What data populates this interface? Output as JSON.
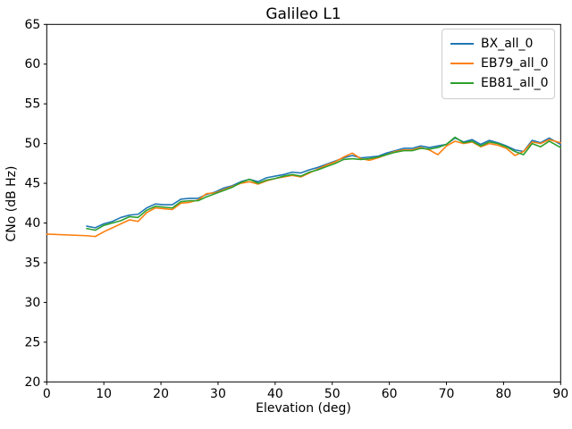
{
  "chart_data": {
    "type": "line",
    "title": "Galileo L1",
    "xlabel": "Elevation (deg)",
    "ylabel": "CNo (dB Hz)",
    "xlim": [
      0,
      90
    ],
    "ylim": [
      20,
      65
    ],
    "xticks": [
      0,
      10,
      20,
      30,
      40,
      50,
      60,
      70,
      80,
      90
    ],
    "yticks": [
      20,
      25,
      30,
      35,
      40,
      45,
      50,
      55,
      60,
      65
    ],
    "grid": false,
    "legend_position": "upper right",
    "series": [
      {
        "name": "BX_all_0",
        "color": "#1f77b4",
        "x": [
          7,
          8.5,
          10,
          11.5,
          13,
          14.5,
          16,
          17.5,
          19,
          20.5,
          22,
          23.5,
          25,
          26.5,
          28,
          29.5,
          31,
          32.5,
          34,
          35.5,
          37,
          38.5,
          40,
          41.5,
          43,
          44.5,
          46,
          47.5,
          49,
          50.5,
          52,
          53.5,
          55,
          56.5,
          58,
          59.5,
          61,
          62.5,
          64,
          65.5,
          67,
          68.5,
          70,
          71.5,
          73,
          74.5,
          76,
          77.5,
          79,
          80.5,
          82,
          83.5,
          85,
          86.5,
          88,
          90
        ],
        "y": [
          39.6,
          39.4,
          39.9,
          40.2,
          40.7,
          41.0,
          41.1,
          41.9,
          42.4,
          42.3,
          42.3,
          43.0,
          43.1,
          43.1,
          43.6,
          43.9,
          44.4,
          44.7,
          45.2,
          45.5,
          45.2,
          45.7,
          45.9,
          46.1,
          46.4,
          46.3,
          46.7,
          47.0,
          47.4,
          47.8,
          48.2,
          48.5,
          48.2,
          48.3,
          48.4,
          48.8,
          49.1,
          49.4,
          49.4,
          49.7,
          49.5,
          49.7,
          49.9,
          50.7,
          50.2,
          50.5,
          49.9,
          50.4,
          50.1,
          49.7,
          49.2,
          49.0,
          50.4,
          50.1,
          50.7,
          49.9
        ]
      },
      {
        "name": "EB79_all_0",
        "color": "#ff7f0e",
        "x": [
          0,
          7,
          8.5,
          10,
          11.5,
          13,
          14.5,
          16,
          17.5,
          19,
          20.5,
          22,
          23.5,
          25,
          26.5,
          28,
          29.5,
          31,
          32.5,
          34,
          35.5,
          37,
          38.5,
          40,
          41.5,
          43,
          44.5,
          46,
          47.5,
          49,
          50.5,
          52,
          53.5,
          55,
          56.5,
          58,
          59.5,
          61,
          62.5,
          64,
          65.5,
          67,
          68.5,
          70,
          71.5,
          73,
          74.5,
          76,
          77.5,
          79,
          80.5,
          82,
          83.5,
          85,
          86.5,
          88,
          90
        ],
        "y": [
          38.6,
          38.4,
          38.3,
          38.9,
          39.4,
          39.9,
          40.4,
          40.2,
          41.3,
          41.9,
          41.8,
          41.7,
          42.5,
          42.6,
          42.9,
          43.7,
          43.8,
          44.2,
          44.6,
          45.0,
          45.2,
          44.9,
          45.3,
          45.6,
          45.8,
          46.0,
          45.8,
          46.3,
          46.8,
          47.3,
          47.7,
          48.3,
          48.8,
          48.1,
          47.9,
          48.2,
          48.6,
          49.0,
          49.2,
          49.2,
          49.5,
          49.2,
          48.6,
          49.7,
          50.3,
          50.0,
          50.2,
          49.6,
          50.0,
          49.8,
          49.4,
          48.5,
          49.0,
          50.2,
          50.0,
          50.5,
          50.1
        ]
      },
      {
        "name": "EB81_all_0",
        "color": "#2ca02c",
        "x": [
          7,
          8.5,
          10,
          11.5,
          13,
          14.5,
          16,
          17.5,
          19,
          20.5,
          22,
          23.5,
          25,
          26.5,
          28,
          29.5,
          31,
          32.5,
          34,
          35.5,
          37,
          38.5,
          40,
          41.5,
          43,
          44.5,
          46,
          47.5,
          49,
          50.5,
          52,
          53.5,
          55,
          56.5,
          58,
          59.5,
          61,
          62.5,
          64,
          65.5,
          67,
          68.5,
          70,
          71.5,
          73,
          74.5,
          76,
          77.5,
          79,
          80.5,
          82,
          83.5,
          85,
          86.5,
          88,
          90
        ],
        "y": [
          39.3,
          39.1,
          39.7,
          40.0,
          40.3,
          40.8,
          40.7,
          41.6,
          42.1,
          42.0,
          41.9,
          42.7,
          42.8,
          42.8,
          43.3,
          43.7,
          44.1,
          44.5,
          45.1,
          45.5,
          45.0,
          45.4,
          45.6,
          45.9,
          46.1,
          45.9,
          46.4,
          46.7,
          47.1,
          47.5,
          48.0,
          48.1,
          48.0,
          48.1,
          48.3,
          48.6,
          48.9,
          49.1,
          49.1,
          49.4,
          49.3,
          49.5,
          49.9,
          50.8,
          50.1,
          50.3,
          49.7,
          50.2,
          50.0,
          49.6,
          49.0,
          48.6,
          50.0,
          49.6,
          50.3,
          49.5
        ]
      }
    ]
  }
}
